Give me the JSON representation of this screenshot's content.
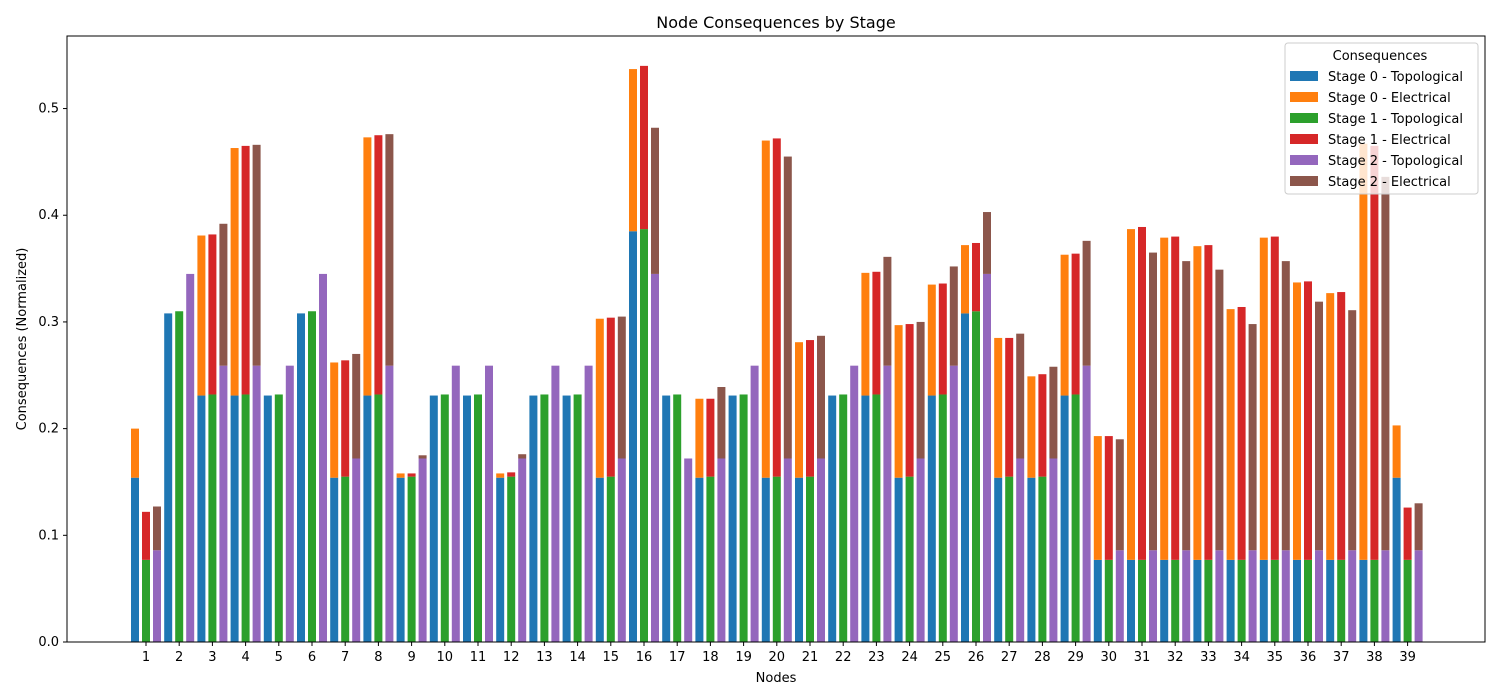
{
  "chart_data": {
    "type": "bar",
    "title": "Node Consequences by Stage",
    "xlabel": "Nodes",
    "ylabel": "Consequences (Normalized)",
    "ylim": [
      0,
      0.568
    ],
    "yticks": [
      "0.0",
      "0.1",
      "0.2",
      "0.3",
      "0.4",
      "0.5"
    ],
    "categories": [
      "1",
      "2",
      "3",
      "4",
      "5",
      "6",
      "7",
      "8",
      "9",
      "10",
      "11",
      "12",
      "13",
      "14",
      "15",
      "16",
      "17",
      "18",
      "19",
      "20",
      "21",
      "22",
      "23",
      "24",
      "25",
      "26",
      "27",
      "28",
      "29",
      "30",
      "31",
      "32",
      "33",
      "34",
      "35",
      "36",
      "37",
      "38",
      "39"
    ],
    "legend": {
      "title": "Consequences",
      "placement": "top-right"
    },
    "stages": [
      {
        "topological_name": "Stage 0 - Topological",
        "electrical_name": "Stage 0 - Electrical",
        "topological_color": "#1f77b4",
        "electrical_color": "#ff7f0e",
        "topological": [
          0.154,
          0.308,
          0.231,
          0.231,
          0.231,
          0.308,
          0.154,
          0.231,
          0.154,
          0.231,
          0.231,
          0.154,
          0.231,
          0.231,
          0.154,
          0.385,
          0.231,
          0.154,
          0.231,
          0.154,
          0.154,
          0.231,
          0.231,
          0.154,
          0.231,
          0.308,
          0.154,
          0.154,
          0.231,
          0.077,
          0.077,
          0.077,
          0.077,
          0.077,
          0.077,
          0.077,
          0.077,
          0.077,
          0.154
        ],
        "electrical": [
          0.046,
          0.0,
          0.15,
          0.232,
          0.0,
          0.0,
          0.108,
          0.242,
          0.004,
          0.0,
          0.0,
          0.004,
          0.0,
          0.0,
          0.149,
          0.152,
          0.0,
          0.074,
          0.0,
          0.316,
          0.127,
          0.0,
          0.115,
          0.143,
          0.104,
          0.064,
          0.131,
          0.095,
          0.132,
          0.116,
          0.31,
          0.302,
          0.294,
          0.235,
          0.302,
          0.26,
          0.25,
          0.39,
          0.049
        ]
      },
      {
        "topological_name": "Stage 1 - Topological",
        "electrical_name": "Stage 1 - Electrical",
        "topological_color": "#2ca02c",
        "electrical_color": "#d62728",
        "topological": [
          0.077,
          0.31,
          0.232,
          0.232,
          0.232,
          0.31,
          0.155,
          0.232,
          0.155,
          0.232,
          0.232,
          0.155,
          0.232,
          0.232,
          0.155,
          0.387,
          0.232,
          0.155,
          0.232,
          0.155,
          0.155,
          0.232,
          0.232,
          0.155,
          0.232,
          0.31,
          0.155,
          0.155,
          0.232,
          0.077,
          0.077,
          0.077,
          0.077,
          0.077,
          0.077,
          0.077,
          0.077,
          0.077,
          0.077
        ],
        "electrical": [
          0.045,
          0.0,
          0.15,
          0.233,
          0.0,
          0.0,
          0.109,
          0.243,
          0.003,
          0.0,
          0.0,
          0.004,
          0.0,
          0.0,
          0.149,
          0.153,
          0.0,
          0.073,
          0.0,
          0.317,
          0.128,
          0.0,
          0.115,
          0.143,
          0.104,
          0.064,
          0.13,
          0.096,
          0.132,
          0.116,
          0.312,
          0.303,
          0.295,
          0.237,
          0.303,
          0.261,
          0.251,
          0.388,
          0.049
        ]
      },
      {
        "topological_name": "Stage 2 - Topological",
        "electrical_name": "Stage 2 - Electrical",
        "topological_color": "#9467bd",
        "electrical_color": "#8c564b",
        "topological": [
          0.086,
          0.345,
          0.259,
          0.259,
          0.259,
          0.345,
          0.172,
          0.259,
          0.172,
          0.259,
          0.259,
          0.172,
          0.259,
          0.259,
          0.172,
          0.345,
          0.172,
          0.172,
          0.259,
          0.172,
          0.172,
          0.259,
          0.259,
          0.172,
          0.259,
          0.345,
          0.172,
          0.172,
          0.259,
          0.086,
          0.086,
          0.086,
          0.086,
          0.086,
          0.086,
          0.086,
          0.086,
          0.086,
          0.086
        ],
        "electrical": [
          0.041,
          0.0,
          0.133,
          0.207,
          0.0,
          0.0,
          0.098,
          0.217,
          0.003,
          0.0,
          0.0,
          0.004,
          0.0,
          0.0,
          0.133,
          0.137,
          0.0,
          0.067,
          0.0,
          0.283,
          0.115,
          0.0,
          0.102,
          0.128,
          0.093,
          0.058,
          0.117,
          0.086,
          0.117,
          0.104,
          0.279,
          0.271,
          0.263,
          0.212,
          0.271,
          0.233,
          0.225,
          0.35,
          0.044
        ]
      }
    ]
  }
}
